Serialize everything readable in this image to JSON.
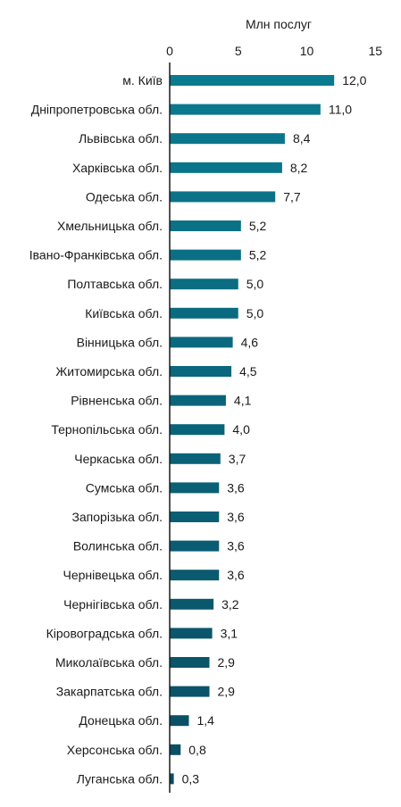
{
  "chart_data": {
    "type": "bar",
    "orientation": "horizontal",
    "xlabel": "Млн послуг",
    "xlim": [
      0,
      15
    ],
    "xticks": [
      "0",
      "5",
      "10",
      "15"
    ],
    "categories": [
      "м. Київ",
      "Дніпропетровська обл.",
      "Львівська обл.",
      "Харківська обл.",
      "Одеська обл.",
      "Хмельницька обл.",
      "Івано-Франківська обл.",
      "Полтавська обл.",
      "Київська обл.",
      "Вінницька обл.",
      "Житомирська обл.",
      "Рівненська обл.",
      "Тернопільська обл.",
      "Черкаська обл.",
      "Сумська обл.",
      "Запорізька обл.",
      "Волинська обл.",
      "Чернівецька обл.",
      "Чернігівська обл.",
      "Кіровоградська обл.",
      "Миколаївська обл.",
      "Закарпатська обл.",
      "Донецька обл.",
      "Херсонська обл.",
      "Луганська обл."
    ],
    "values": [
      12.0,
      11.0,
      8.4,
      8.2,
      7.7,
      5.2,
      5.2,
      5.0,
      5.0,
      4.6,
      4.5,
      4.1,
      4.0,
      3.7,
      3.6,
      3.6,
      3.6,
      3.6,
      3.2,
      3.1,
      2.9,
      2.9,
      1.4,
      0.8,
      0.3
    ],
    "value_labels": [
      "12,0",
      "11,0",
      "8,4",
      "8,2",
      "7,7",
      "5,2",
      "5,2",
      "5,0",
      "5,0",
      "4,6",
      "4,5",
      "4,1",
      "4,0",
      "3,7",
      "3,6",
      "3,6",
      "3,6",
      "3,6",
      "3,2",
      "3,1",
      "2,9",
      "2,9",
      "1,4",
      "0,8",
      "0,3"
    ],
    "bar_color_top": "#0a7a8f",
    "bar_color_bottom": "#0a4d63",
    "grid": false
  }
}
